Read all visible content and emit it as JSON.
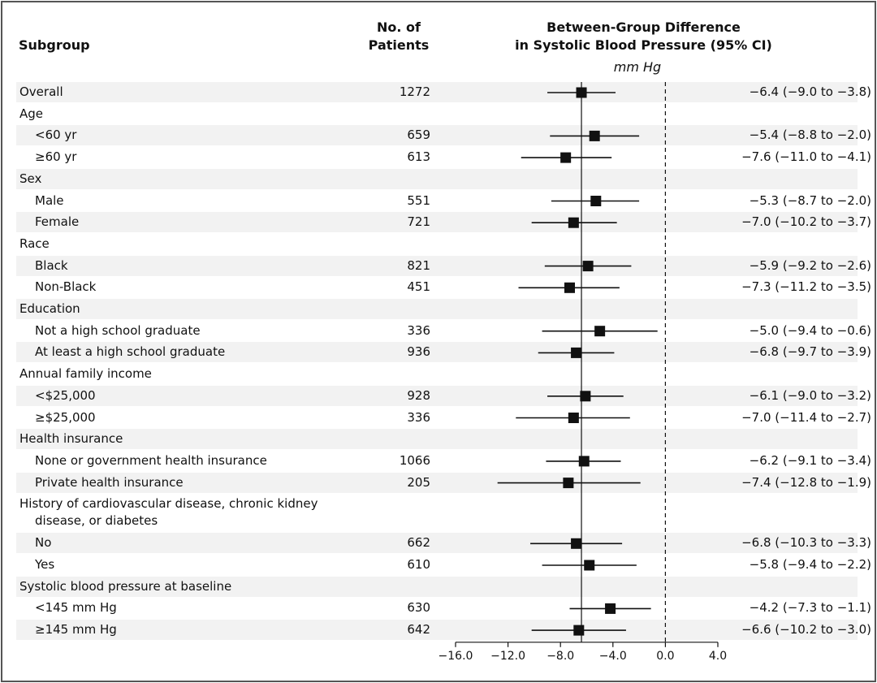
{
  "headers": {
    "subgroup": "Subgroup",
    "patients_line1": "No. of",
    "patients_line2": "Patients",
    "diff_line1": "Between-Group Difference",
    "diff_line2": "in Systolic Blood Pressure (95% CI)",
    "unit": "mm Hg"
  },
  "chart_data": {
    "type": "forest",
    "xlim": [
      -16.0,
      4.0
    ],
    "ticks": [
      -16.0,
      -12.0,
      -8.0,
      -4.0,
      0.0,
      4.0
    ],
    "tick_labels": [
      "−16.0",
      "−12.0",
      "−8.0",
      "−4.0",
      "0.0",
      "4.0"
    ],
    "overall_effect": -6.4,
    "null_line": 0.0,
    "rows": [
      {
        "label": "Overall",
        "n": "1272",
        "est": -6.4,
        "lo": -9.0,
        "hi": -3.8,
        "text": "−6.4 (−9.0 to −3.8)"
      },
      {
        "label": "Age",
        "heading": true
      },
      {
        "label": "<60 yr",
        "n": "659",
        "est": -5.4,
        "lo": -8.8,
        "hi": -2.0,
        "text": "−5.4 (−8.8 to −2.0)"
      },
      {
        "label": "≥60 yr",
        "n": "613",
        "est": -7.6,
        "lo": -11.0,
        "hi": -4.1,
        "text": "−7.6 (−11.0 to −4.1)"
      },
      {
        "label": "Sex",
        "heading": true
      },
      {
        "label": "Male",
        "n": "551",
        "est": -5.3,
        "lo": -8.7,
        "hi": -2.0,
        "text": "−5.3 (−8.7 to −2.0)"
      },
      {
        "label": "Female",
        "n": "721",
        "est": -7.0,
        "lo": -10.2,
        "hi": -3.7,
        "text": "−7.0 (−10.2 to −3.7)"
      },
      {
        "label": "Race",
        "heading": true
      },
      {
        "label": "Black",
        "n": "821",
        "est": -5.9,
        "lo": -9.2,
        "hi": -2.6,
        "text": "−5.9 (−9.2 to −2.6)"
      },
      {
        "label": "Non-Black",
        "n": "451",
        "est": -7.3,
        "lo": -11.2,
        "hi": -3.5,
        "text": "−7.3 (−11.2 to −3.5)"
      },
      {
        "label": "Education",
        "heading": true
      },
      {
        "label": "Not a high school graduate",
        "n": "336",
        "est": -5.0,
        "lo": -9.4,
        "hi": -0.6,
        "text": "−5.0 (−9.4 to −0.6)"
      },
      {
        "label": "At least a high school graduate",
        "n": "936",
        "est": -6.8,
        "lo": -9.7,
        "hi": -3.9,
        "text": "−6.8 (−9.7 to −3.9)"
      },
      {
        "label": "Annual family income",
        "heading": true
      },
      {
        "label": "<$25,000",
        "n": "928",
        "est": -6.1,
        "lo": -9.0,
        "hi": -3.2,
        "text": "−6.1 (−9.0 to −3.2)"
      },
      {
        "label": "≥$25,000",
        "n": "336",
        "est": -7.0,
        "lo": -11.4,
        "hi": -2.7,
        "text": "−7.0 (−11.4 to −2.7)"
      },
      {
        "label": "Health insurance",
        "heading": true
      },
      {
        "label": "None or government health insurance",
        "n": "1066",
        "est": -6.2,
        "lo": -9.1,
        "hi": -3.4,
        "text": "−6.2 (−9.1 to −3.4)"
      },
      {
        "label": "Private health insurance",
        "n": "205",
        "est": -7.4,
        "lo": -12.8,
        "hi": -1.9,
        "text": "−7.4 (−12.8 to −1.9)"
      },
      {
        "label": "History of cardiovascular disease, chronic kidney",
        "label2": "disease, or diabetes",
        "heading": true,
        "tall": true
      },
      {
        "label": "No",
        "n": "662",
        "est": -6.8,
        "lo": -10.3,
        "hi": -3.3,
        "text": "−6.8 (−10.3 to −3.3)"
      },
      {
        "label": "Yes",
        "n": "610",
        "est": -5.8,
        "lo": -9.4,
        "hi": -2.2,
        "text": "−5.8 (−9.4 to −2.2)"
      },
      {
        "label": "Systolic blood pressure at baseline",
        "heading": true
      },
      {
        "label": "<145 mm Hg",
        "n": "630",
        "est": -4.2,
        "lo": -7.3,
        "hi": -1.1,
        "text": "−4.2 (−7.3 to −1.1)"
      },
      {
        "label": "≥145 mm Hg",
        "n": "642",
        "est": -6.6,
        "lo": -10.2,
        "hi": -3.0,
        "text": "−6.6 (−10.2 to −3.0)"
      }
    ]
  }
}
